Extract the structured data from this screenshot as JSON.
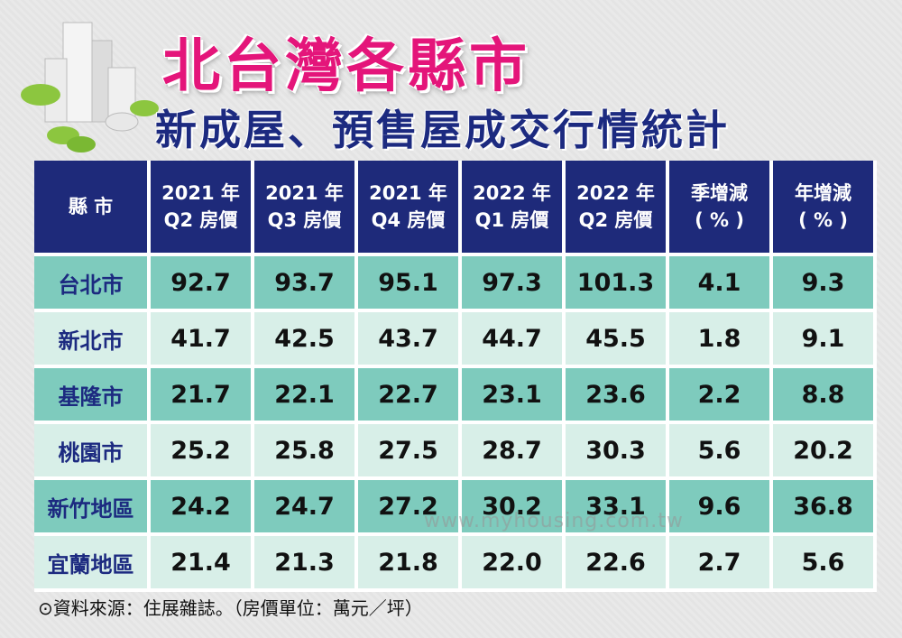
{
  "header": {
    "title": "北台灣各縣市",
    "subtitle": "新成屋、預售屋成交行情統計"
  },
  "table": {
    "headers": [
      [
        "縣 市"
      ],
      [
        "2021 年",
        "Q2 房價"
      ],
      [
        "2021 年",
        "Q3 房價"
      ],
      [
        "2021 年",
        "Q4 房價"
      ],
      [
        "2022 年",
        "Q1 房價"
      ],
      [
        "2022 年",
        "Q2 房價"
      ],
      [
        "季增減",
        "( % )"
      ],
      [
        "年增減",
        "( % )"
      ]
    ],
    "rows": [
      [
        "台北市",
        "92.7",
        "93.7",
        "95.1",
        "97.3",
        "101.3",
        "4.1",
        "9.3"
      ],
      [
        "新北市",
        "41.7",
        "42.5",
        "43.7",
        "44.7",
        "45.5",
        "1.8",
        "9.1"
      ],
      [
        "基隆市",
        "21.7",
        "22.1",
        "22.7",
        "23.1",
        "23.6",
        "2.2",
        "8.8"
      ],
      [
        "桃園市",
        "25.2",
        "25.8",
        "27.5",
        "28.7",
        "30.3",
        "5.6",
        "20.2"
      ],
      [
        "新竹地區",
        "24.2",
        "24.7",
        "27.2",
        "30.2",
        "33.1",
        "9.6",
        "36.8"
      ],
      [
        "宜蘭地區",
        "21.4",
        "21.3",
        "21.8",
        "22.0",
        "22.6",
        "2.7",
        "5.6"
      ]
    ]
  },
  "watermark": "www.myhousing.com.tw",
  "footer": {
    "source": "⊙資料來源：住展雜誌。（房價單位：萬元／坪）"
  }
}
